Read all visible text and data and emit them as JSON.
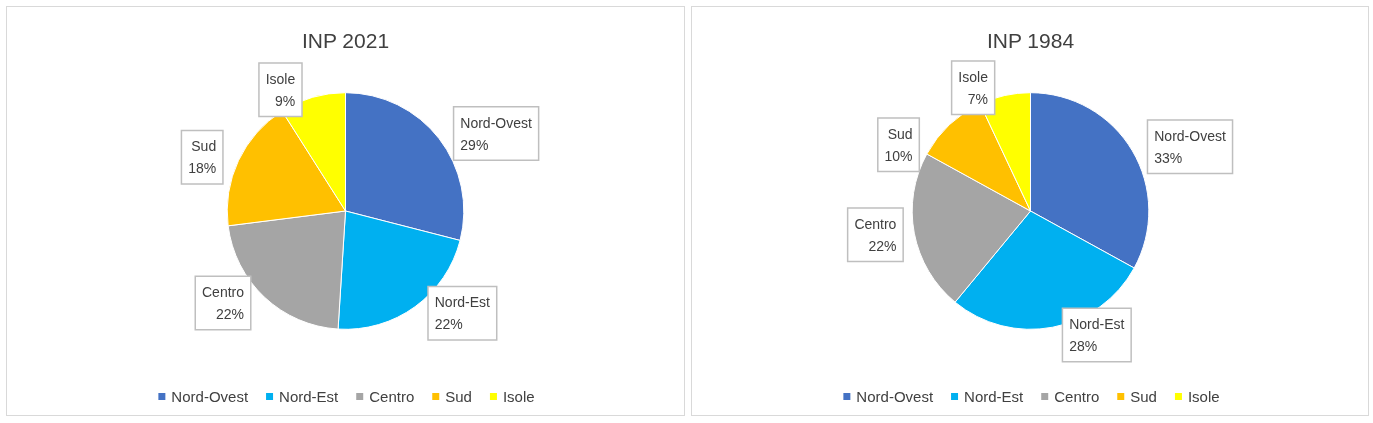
{
  "chart_data": [
    {
      "type": "pie",
      "title": "INP 2021",
      "categories": [
        "Nord-Ovest",
        "Nord-Est",
        "Centro",
        "Sud",
        "Isole"
      ],
      "values": [
        29,
        22,
        22,
        18,
        9
      ],
      "colors": [
        "#4472c4",
        "#00b0f0",
        "#a5a5a5",
        "#ffc000",
        "#ffff00"
      ],
      "value_labels": [
        "29%",
        "22%",
        "22%",
        "18%",
        "9%"
      ],
      "legend": "bottom"
    },
    {
      "type": "pie",
      "title": "INP 1984",
      "categories": [
        "Nord-Ovest",
        "Nord-Est",
        "Centro",
        "Sud",
        "Isole"
      ],
      "values": [
        33,
        28,
        22,
        10,
        7
      ],
      "colors": [
        "#4472c4",
        "#00b0f0",
        "#a5a5a5",
        "#ffc000",
        "#ffff00"
      ],
      "value_labels": [
        "33%",
        "28%",
        "22%",
        "10%",
        "7%"
      ],
      "legend": "bottom"
    }
  ]
}
